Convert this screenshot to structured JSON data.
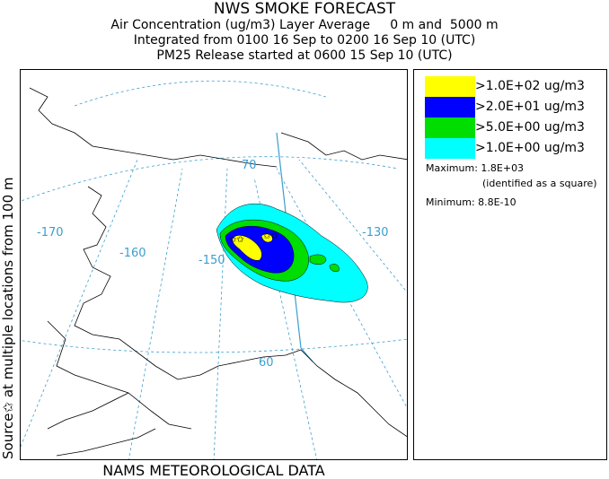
{
  "header": {
    "title": "NWS SMOKE FORECAST",
    "line1": "Air Concentration (ug/m3) Layer Average     0 m and  5000 m",
    "line2": "Integrated from 0100 16 Sep to 0200 16 Sep 10 (UTC)",
    "line3": "PM25 Release started at 0600 15 Sep 10 (UTC)"
  },
  "side_label": "Source✩   at multiple locations     from   100 m",
  "footer": "NAMS METEOROLOGICAL DATA",
  "map": {
    "grid_labels": {
      "lon_170": "-170",
      "lon_160": "-160",
      "lon_150": "-150",
      "lon_130": "-130",
      "lat_70": "70",
      "lat_60": "60"
    }
  },
  "legend": {
    "entries": [
      {
        "label": ">1.0E+02 ug/m3",
        "color": "#ffff00"
      },
      {
        "label": ">2.0E+01 ug/m3",
        "color": "#0000ff"
      },
      {
        "label": ">5.0E+00 ug/m3",
        "color": "#00dd00"
      },
      {
        "label": ">1.0E+00 ug/m3",
        "color": "#00ffff"
      }
    ],
    "maximum": "Maximum: 1.8E+03",
    "maximum_note": "(identified as a square)",
    "minimum": "Minimum: 8.8E-10"
  }
}
